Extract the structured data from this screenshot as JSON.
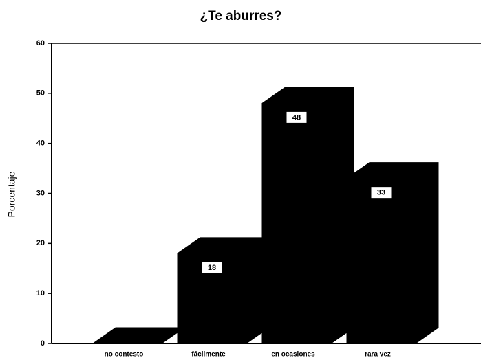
{
  "chart_data": {
    "type": "bar3d",
    "title": "¿Te aburres?",
    "ylabel": "Porcentaje",
    "categories": [
      "no contesto",
      "fácilmente",
      "en ocasiones",
      "rara vez"
    ],
    "values": [
      0,
      18,
      48,
      33
    ],
    "color": "#000000",
    "ylim": [
      0,
      60
    ],
    "yticks": [
      0,
      10,
      20,
      30,
      40,
      50,
      60
    ]
  }
}
